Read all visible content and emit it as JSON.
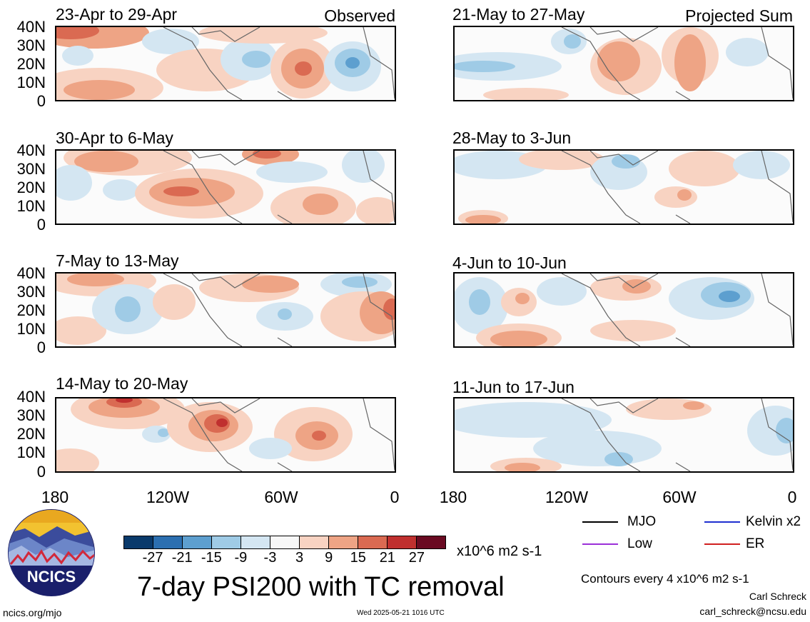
{
  "panels": [
    {
      "title": "23-Apr to 29-Apr",
      "tag": "Observed"
    },
    {
      "title": "30-Apr to 6-May",
      "tag": ""
    },
    {
      "title": "7-May to 13-May",
      "tag": ""
    },
    {
      "title": "14-May to 20-May",
      "tag": ""
    },
    {
      "title": "21-May to 27-May",
      "tag": "Projected Sum"
    },
    {
      "title": "28-May to 3-Jun",
      "tag": ""
    },
    {
      "title": "4-Jun to 10-Jun",
      "tag": ""
    },
    {
      "title": "11-Jun to 17-Jun",
      "tag": ""
    }
  ],
  "lat_labels": [
    "40N",
    "30N",
    "20N",
    "10N",
    "0"
  ],
  "lon_labels": [
    "180",
    "120W",
    "60W",
    "0"
  ],
  "colorbar": {
    "colors": [
      "#0a3a6b",
      "#2c6fb0",
      "#5d9fcf",
      "#9fcbe6",
      "#d4e6f2",
      "#f7f7f7",
      "#f8d3c2",
      "#eea485",
      "#da6a52",
      "#c0302f",
      "#6a0a22"
    ],
    "labels": [
      "-27",
      "-21",
      "-15",
      "-9",
      "-3",
      "3",
      "9",
      "15",
      "21",
      "27"
    ],
    "units": "x10^6 m2 s-1"
  },
  "main_title": "7-day PSI200 with TC removal",
  "legend": [
    {
      "label": "MJO",
      "color": "#000000"
    },
    {
      "label": "Kelvin x2",
      "color": "#1f2fd0"
    },
    {
      "label": "Low",
      "color": "#9b30d8"
    },
    {
      "label": "ER",
      "color": "#d01f1f"
    }
  ],
  "contour_note": "Contours every 4 x10^6 m2 s-1",
  "author": "Carl Schreck",
  "email": "carl_schreck@ncsu.edu",
  "site": "ncics.org/mjo",
  "timestamp": "Wed 2025-05-21 1016 UTC",
  "logo_text": "NCICS"
}
